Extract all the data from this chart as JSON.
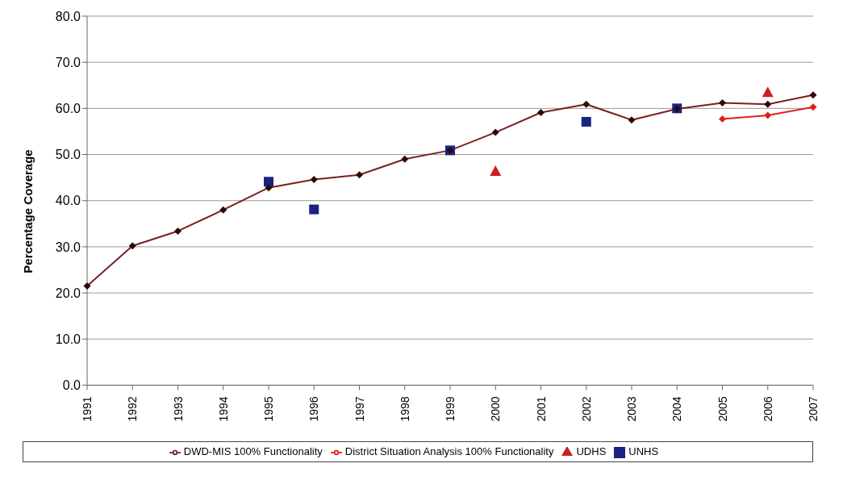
{
  "chart_data": {
    "type": "line",
    "ylabel": "Percentage Coverage",
    "categories": [
      "1991",
      "1992",
      "1993",
      "1994",
      "1995",
      "1996",
      "1997",
      "1998",
      "1999",
      "2000",
      "2001",
      "2002",
      "2003",
      "2004",
      "2005",
      "2006",
      "2007"
    ],
    "series": [
      {
        "name": "DWD-MIS 100% Functionality",
        "type": "line",
        "marker": "diamond",
        "color": "#7a2020",
        "values": [
          21.5,
          30.2,
          33.4,
          38.0,
          42.8,
          44.6,
          45.6,
          49.0,
          50.9,
          54.8,
          59.1,
          60.9,
          57.5,
          59.9,
          61.2,
          60.9,
          62.9
        ]
      },
      {
        "name": "UNHS",
        "type": "scatter",
        "marker": "square",
        "color": "#1a237e",
        "values": [
          null,
          null,
          null,
          null,
          44.1,
          38.1,
          null,
          null,
          50.9,
          null,
          null,
          57.1,
          null,
          60.0,
          null,
          null,
          null
        ]
      },
      {
        "name": "UDHS",
        "type": "scatter",
        "marker": "triangle",
        "color": "#cc2020",
        "values": [
          null,
          null,
          null,
          null,
          null,
          null,
          null,
          null,
          null,
          46.4,
          null,
          null,
          null,
          null,
          null,
          63.5,
          null
        ]
      },
      {
        "name": "District Situation Analysis 100% Functionality",
        "type": "line",
        "marker": "diamond",
        "color": "#e02020",
        "values": [
          null,
          null,
          null,
          null,
          null,
          null,
          null,
          null,
          null,
          null,
          null,
          null,
          null,
          null,
          57.7,
          58.5,
          60.3
        ]
      }
    ],
    "ylim": [
      0,
      80
    ],
    "yticks": [
      {
        "value": 0,
        "label": "0.0"
      },
      {
        "value": 10,
        "label": "10.0"
      },
      {
        "value": 20,
        "label": "20.0"
      },
      {
        "value": 30,
        "label": "30.0"
      },
      {
        "value": 40,
        "label": "40.0"
      },
      {
        "value": 50,
        "label": "50.0"
      },
      {
        "value": 60,
        "label": "60.0"
      },
      {
        "value": 70,
        "label": "70.0"
      },
      {
        "value": 80,
        "label": "80.0"
      }
    ],
    "grid": "y",
    "legend": "bottom"
  }
}
